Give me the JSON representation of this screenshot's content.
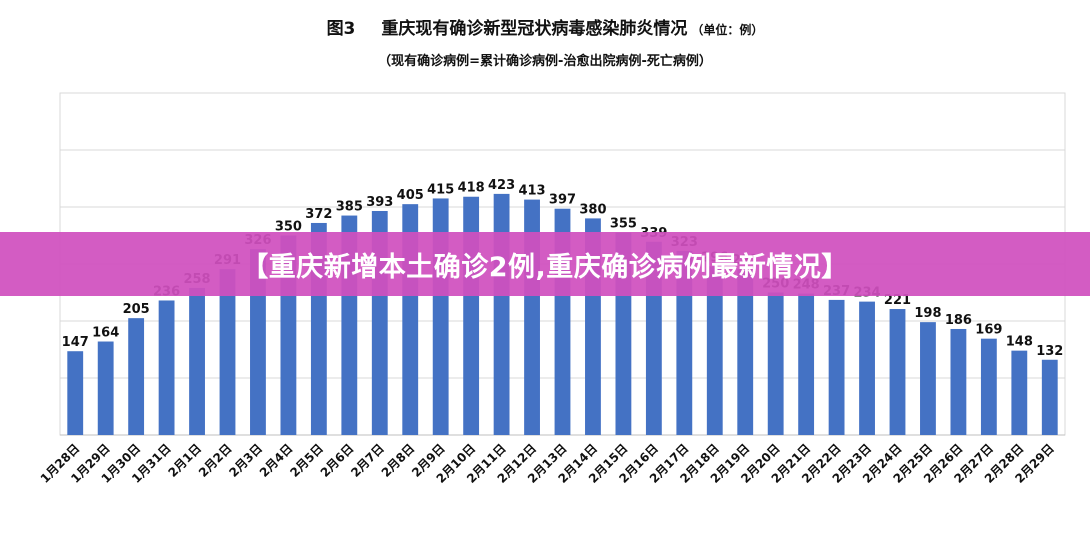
{
  "figure": {
    "label": "图3",
    "title": "重庆现有确诊新型冠状病毒感染肺炎情况",
    "unit": "（单位：例）",
    "subtitle": "（现有确诊病例=累计确诊病例-治愈出院病例-死亡病例）"
  },
  "banner": {
    "text": "【重庆新增本土确诊2例,重庆确诊病例最新情况】"
  },
  "colors": {
    "bar": "#4472C4",
    "banner": "#D050BE",
    "grid": "#D9D9D9"
  },
  "chart_data": {
    "type": "bar",
    "categories": [
      "1月28日",
      "1月29日",
      "1月30日",
      "1月31日",
      "2月1日",
      "2月2日",
      "2月3日",
      "2月4日",
      "2月5日",
      "2月6日",
      "2月7日",
      "2月8日",
      "2月9日",
      "2月10日",
      "2月11日",
      "2月12日",
      "2月13日",
      "2月14日",
      "2月15日",
      "2月16日",
      "2月17日",
      "2月18日",
      "2月19日",
      "2月20日",
      "2月21日",
      "2月22日",
      "2月23日",
      "2月24日",
      "2月25日",
      "2月26日",
      "2月27日",
      "2月28日",
      "2月29日"
    ],
    "values": [
      147,
      164,
      205,
      236,
      258,
      291,
      326,
      350,
      372,
      385,
      393,
      405,
      415,
      418,
      423,
      413,
      397,
      380,
      355,
      339,
      323,
      296,
      291,
      250,
      248,
      237,
      234,
      221,
      198,
      186,
      169,
      148,
      132
    ],
    "ylim": [
      0,
      600
    ],
    "grid": true,
    "data_labels": true,
    "legend": "none"
  }
}
